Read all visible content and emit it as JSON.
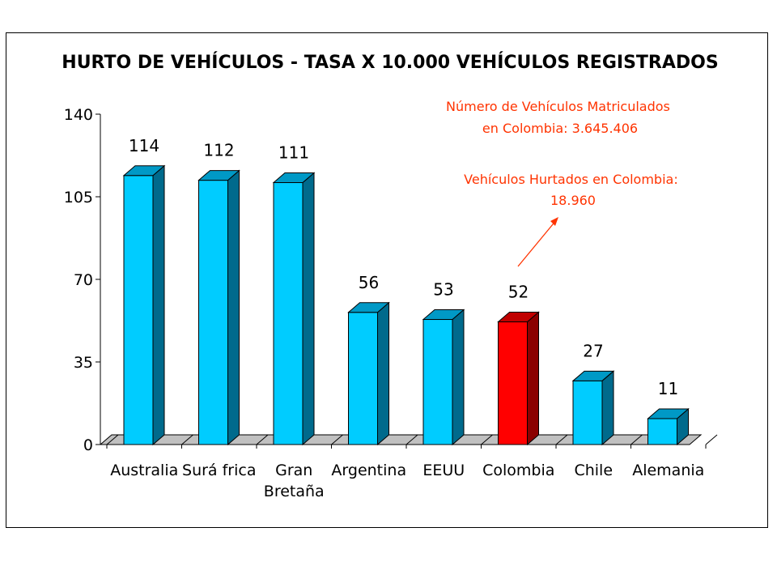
{
  "chart_data": {
    "type": "bar",
    "title": "HURTO DE VEHÍCULOS - TASA X 10.000 VEHÍCULOS REGISTRADOS",
    "categories": [
      [
        "Australia"
      ],
      [
        "Surá frica"
      ],
      [
        "Gran",
        "Bretaña"
      ],
      [
        "Argentina"
      ],
      [
        "EEUU"
      ],
      [
        "Colombia"
      ],
      [
        "Chile"
      ],
      [
        "Alemania"
      ]
    ],
    "values": [
      114,
      112,
      111,
      56,
      53,
      52,
      27,
      11
    ],
    "ylim": [
      0,
      140
    ],
    "yticks": [
      0,
      35,
      70,
      105,
      140
    ],
    "highlight_index": 5,
    "colors": {
      "bar_front": "#00CCFF",
      "bar_side": "#006A8C",
      "bar_top": "#0099C6",
      "highlight_front": "#FF0000",
      "highlight_side": "#8B0000",
      "highlight_top": "#C00000",
      "floor": "#C0C0C0",
      "annotation": "#FF3300"
    },
    "annotations": [
      {
        "lines": [
          "Número de Vehículos Matriculados",
          "en Colombia: 3.645.406"
        ]
      },
      {
        "lines": [
          "Vehículos Hurtados en Colombia:",
          "18.960"
        ]
      }
    ]
  }
}
